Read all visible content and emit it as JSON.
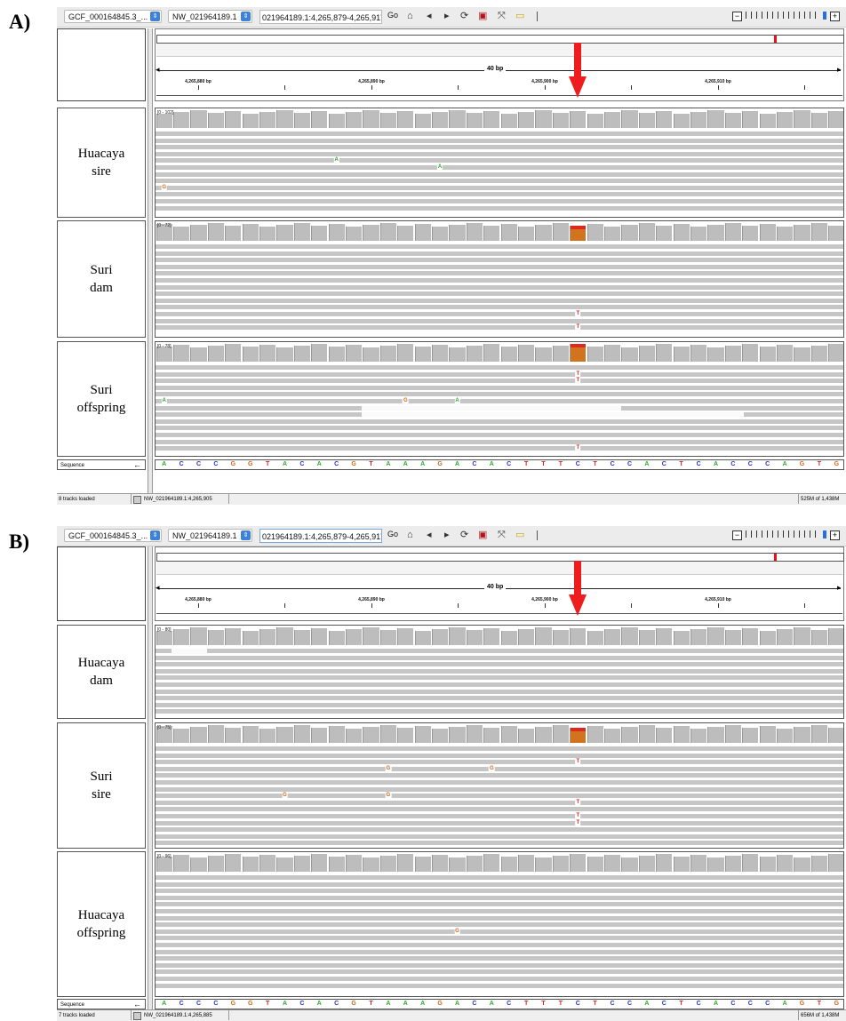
{
  "panels": [
    {
      "letter": "A)",
      "toolbar": {
        "genome": "GCF_000164845.3_...",
        "chromosome": "NW_021964189.1",
        "locus": "021964189.1:4,265,879-4,265,917",
        "go_label": "Go"
      },
      "ruler": {
        "span_label": "40 bp",
        "ticks": [
          "4,265,880 bp",
          "4,265,890 bp",
          "4,265,900 bp",
          "4,265,910 bp"
        ]
      },
      "tracks": [
        {
          "name": "Huacaya\nsire",
          "range": "[0 - 102]",
          "mismatches": [
            {
              "base": "A",
              "pos": 10,
              "row": 4
            },
            {
              "base": "A",
              "pos": 16,
              "row": 5
            },
            {
              "base": "G",
              "pos": 0,
              "row": 8
            }
          ],
          "variant": false
        },
        {
          "name": "Suri\ndam",
          "range": "[0 - 72]",
          "mismatches": [
            {
              "base": "T",
              "pos": 24,
              "row": 10
            },
            {
              "base": "T",
              "pos": 24,
              "row": 12
            }
          ],
          "variant": true
        },
        {
          "name": "Suri\noffspring",
          "range": "[0 - 78]",
          "mismatches": [
            {
              "base": "T",
              "pos": 24,
              "row": 1
            },
            {
              "base": "T",
              "pos": 24,
              "row": 2
            },
            {
              "base": "A",
              "pos": 0,
              "row": 5
            },
            {
              "base": "G",
              "pos": 14,
              "row": 5
            },
            {
              "base": "A",
              "pos": 17,
              "row": 5
            },
            {
              "base": "T",
              "pos": 24,
              "row": 12
            }
          ],
          "variant": true
        }
      ],
      "sequence_label": "Sequence",
      "status": {
        "tracks_loaded": "8 tracks loaded",
        "position": "NW_021964189.1:4,265,905",
        "memory": "525M of 1,438M"
      }
    },
    {
      "letter": "B)",
      "toolbar": {
        "genome": "GCF_000164845.3_...",
        "chromosome": "NW_021964189.1",
        "locus": "021964189.1:4,265,879-4,265,917",
        "go_label": "Go"
      },
      "ruler": {
        "span_label": "40 bp",
        "ticks": [
          "4,265,880 bp",
          "4,265,890 bp",
          "4,265,900 bp",
          "4,265,910 bp"
        ]
      },
      "tracks": [
        {
          "name": "Huacaya\ndam",
          "range": "[0 - 80]",
          "mismatches": [],
          "variant": false
        },
        {
          "name": "Suri\nsire",
          "range": "[0 - 75]",
          "mismatches": [
            {
              "base": "T",
              "pos": 24,
              "row": 2
            },
            {
              "base": "G",
              "pos": 13,
              "row": 3
            },
            {
              "base": "G",
              "pos": 19,
              "row": 3
            },
            {
              "base": "G",
              "pos": 7,
              "row": 7
            },
            {
              "base": "G",
              "pos": 13,
              "row": 7
            },
            {
              "base": "T",
              "pos": 24,
              "row": 8
            },
            {
              "base": "T",
              "pos": 24,
              "row": 10
            },
            {
              "base": "T",
              "pos": 24,
              "row": 11
            }
          ],
          "variant": true
        },
        {
          "name": "Huacaya\noffspring",
          "range": "[0 - 96]",
          "mismatches": [
            {
              "base": "G",
              "pos": 17,
              "row": 8
            }
          ],
          "variant": false
        }
      ],
      "sequence_label": "Sequence",
      "status": {
        "tracks_loaded": "7 tracks loaded",
        "position": "NW_021964189.1:4,265,885",
        "memory": "656M of 1,438M"
      }
    }
  ],
  "reference_sequence": [
    "A",
    "C",
    "C",
    "C",
    "G",
    "G",
    "T",
    "A",
    "C",
    "A",
    "C",
    "G",
    "T",
    "A",
    "A",
    "A",
    "G",
    "A",
    "C",
    "A",
    "C",
    "T",
    "T",
    "T",
    "C",
    "T",
    "C",
    "C",
    "A",
    "C",
    "T",
    "C",
    "A",
    "C",
    "C",
    "C",
    "A",
    "G",
    "T",
    "G"
  ],
  "colors": {
    "A": "#2fa82f",
    "C": "#2630c8",
    "G": "#d0661a",
    "T": "#d3221e",
    "coverage": "#bdbdbd",
    "read": "#c6c6c6",
    "arrow": "#ee1c1c",
    "variant_top": "#e0281e",
    "variant_body": "#d2741e"
  },
  "icons": [
    "home-icon",
    "back-arrow-icon",
    "forward-arrow-icon",
    "refresh-icon",
    "roi-icon",
    "resize-icon",
    "popup-text-icon"
  ]
}
